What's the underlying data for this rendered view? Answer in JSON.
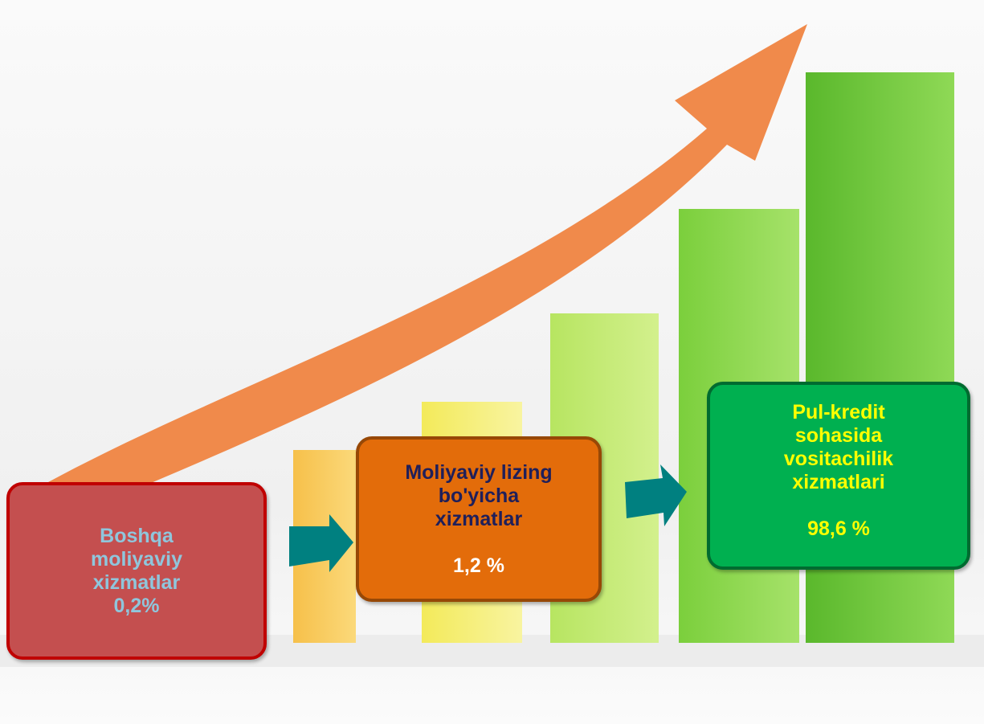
{
  "boxes": [
    {
      "lines": [
        "Boshqa",
        "moliyaviy",
        "xizmatlar",
        "0,2%"
      ],
      "value": null
    },
    {
      "lines": [
        "Moliyaviy lizing",
        "bo'yicha",
        "xizmatlar"
      ],
      "value": "1,2 %"
    },
    {
      "lines": [
        "Pul-kredit",
        "sohasida",
        "vositachilik",
        "xizmatlari"
      ],
      "value": "98,6 %"
    }
  ]
}
